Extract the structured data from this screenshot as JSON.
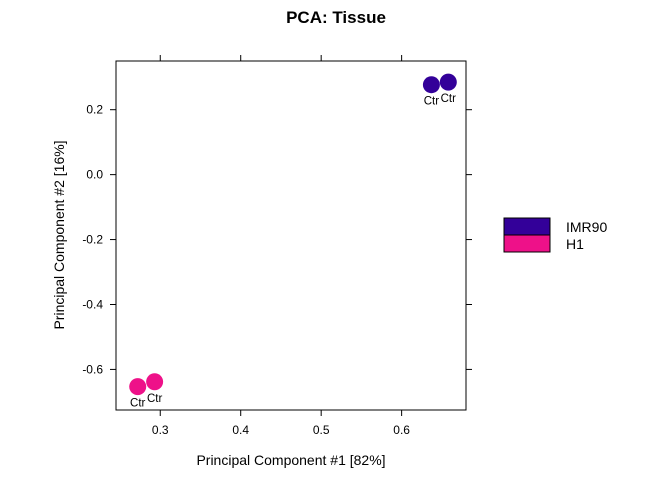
{
  "chart_data": {
    "type": "scatter",
    "title": "PCA: Tissue",
    "xlabel": "Principal Component #1 [82%]",
    "ylabel": "Principal Component #2 [16%]",
    "xlim": [
      0.245,
      0.68
    ],
    "ylim": [
      -0.725,
      0.35
    ],
    "xticks": [
      0.3,
      0.4,
      0.5,
      0.6
    ],
    "xtick_labels": [
      "0.3",
      "0.4",
      "0.5",
      "0.6"
    ],
    "yticks": [
      0.2,
      0.0,
      -0.2,
      -0.4,
      -0.6
    ],
    "ytick_labels": [
      "0.2",
      "0.0",
      "-0.2",
      "-0.4",
      "-0.6"
    ],
    "grid": false,
    "legend_position": "right",
    "series": [
      {
        "name": "IMR90",
        "color": "#330099",
        "points": [
          {
            "x": 0.658,
            "y": 0.285,
            "label": "Ctr"
          },
          {
            "x": 0.637,
            "y": 0.277,
            "label": "Ctr"
          }
        ]
      },
      {
        "name": "H1",
        "color": "#EE1189",
        "points": [
          {
            "x": 0.272,
            "y": -0.653,
            "label": "Ctr"
          },
          {
            "x": 0.293,
            "y": -0.638,
            "label": "Ctr"
          }
        ]
      }
    ]
  }
}
